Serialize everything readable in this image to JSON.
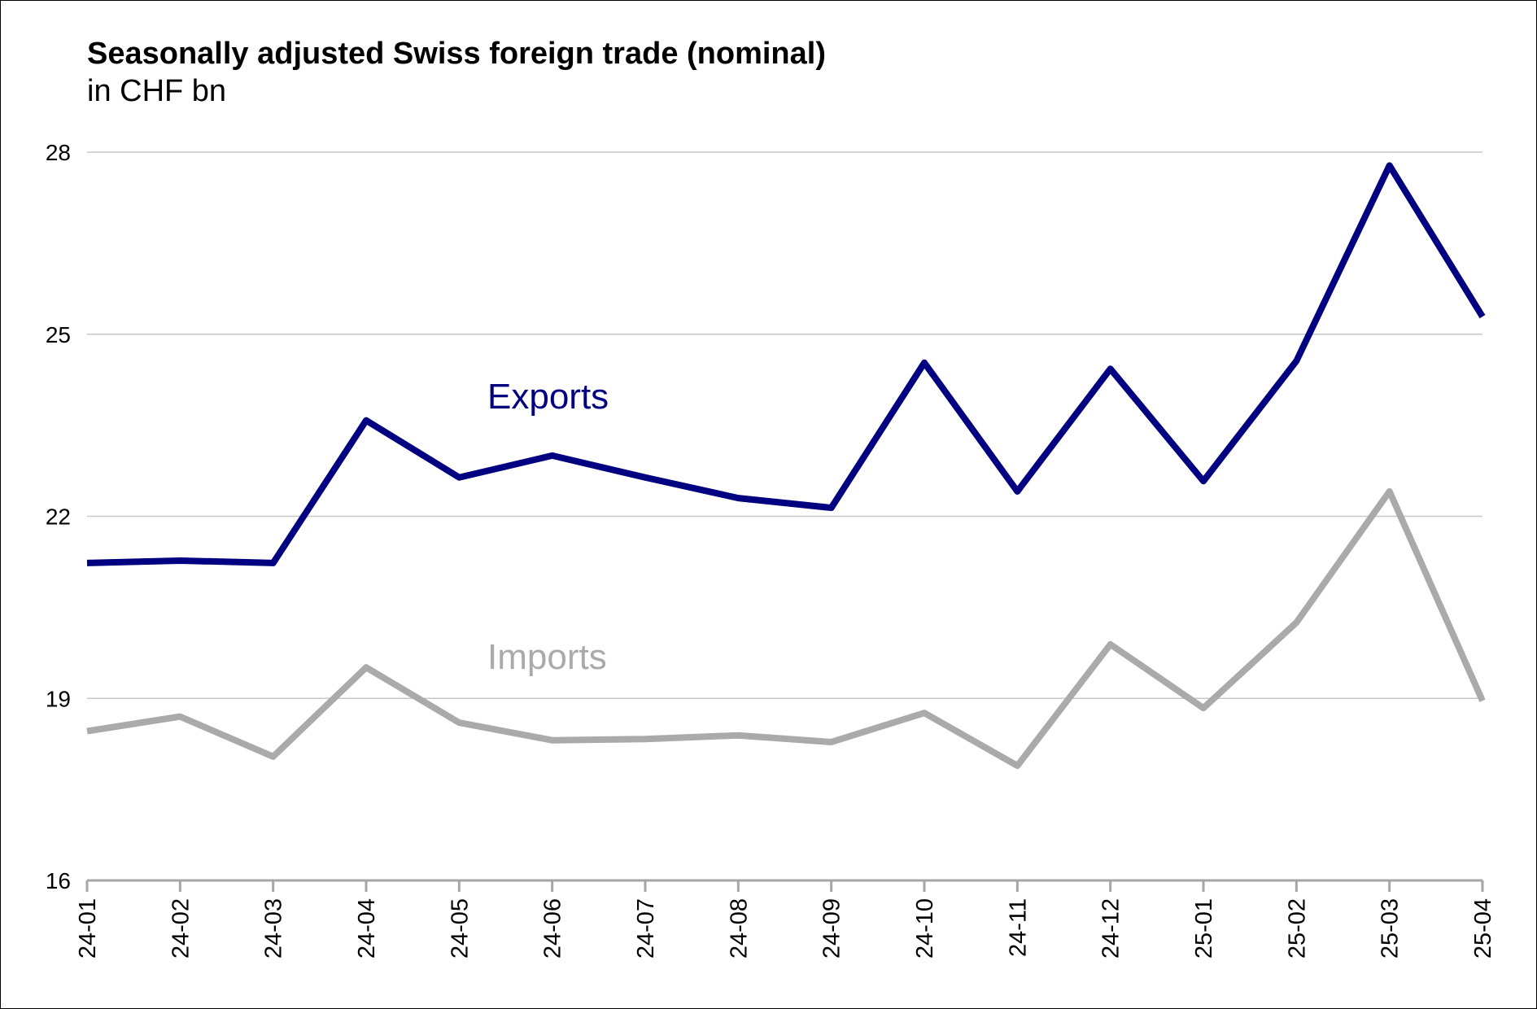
{
  "chart_data": {
    "type": "line",
    "title": "Seasonally adjusted Swiss foreign trade (nominal)",
    "subtitle": "in CHF bn",
    "categories": [
      "24-01",
      "24-02",
      "24-03",
      "24-04",
      "24-05",
      "24-06",
      "24-07",
      "24-08",
      "24-09",
      "24-10",
      "24-11",
      "24-12",
      "25-01",
      "25-02",
      "25-03",
      "25-04"
    ],
    "series": [
      {
        "name": "Exports",
        "color": "#000080",
        "values": [
          21.23,
          21.27,
          21.23,
          23.58,
          22.64,
          23.0,
          22.64,
          22.3,
          22.14,
          24.53,
          22.41,
          24.43,
          22.58,
          24.56,
          27.78,
          25.29
        ]
      },
      {
        "name": "Imports",
        "color": "#aaaaaa",
        "values": [
          18.46,
          18.7,
          18.04,
          19.51,
          18.6,
          18.31,
          18.33,
          18.39,
          18.28,
          18.76,
          17.89,
          19.89,
          18.84,
          20.25,
          22.41,
          18.96
        ]
      }
    ],
    "ylim": [
      16,
      28
    ],
    "yticks": [
      16,
      19,
      22,
      25,
      28
    ],
    "grid": true
  }
}
